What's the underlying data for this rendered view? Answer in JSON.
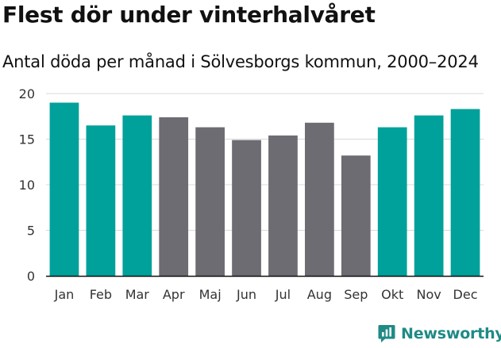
{
  "title": "Flest dör under vinterhalvåret",
  "subtitle": "Antal döda per månad i Sölvesborgs kommun, 2000–2024",
  "brand": {
    "name": "Newsworthy",
    "icon": "newsworthy-logo-icon"
  },
  "colors": {
    "winter": "#00a19a",
    "summer": "#6e6c73",
    "grid": "#d9d9d9",
    "axis": "#111111",
    "brand": "#1f8a86"
  },
  "chart_data": {
    "type": "bar",
    "title": "Flest dör under vinterhalvåret",
    "subtitle": "Antal döda per månad i Sölvesborgs kommun, 2000–2024",
    "xlabel": "",
    "ylabel": "",
    "ylim": [
      0,
      20
    ],
    "yticks": [
      0,
      5,
      10,
      15,
      20
    ],
    "grid": true,
    "categories": [
      "Jan",
      "Feb",
      "Mar",
      "Apr",
      "Maj",
      "Jun",
      "Jul",
      "Aug",
      "Sep",
      "Okt",
      "Nov",
      "Dec"
    ],
    "values": [
      19.0,
      16.5,
      17.6,
      17.4,
      16.3,
      14.9,
      15.4,
      16.8,
      13.2,
      16.3,
      17.6,
      18.3
    ],
    "groups": [
      "winter",
      "winter",
      "winter",
      "summer",
      "summer",
      "summer",
      "summer",
      "summer",
      "summer",
      "winter",
      "winter",
      "winter"
    ]
  }
}
